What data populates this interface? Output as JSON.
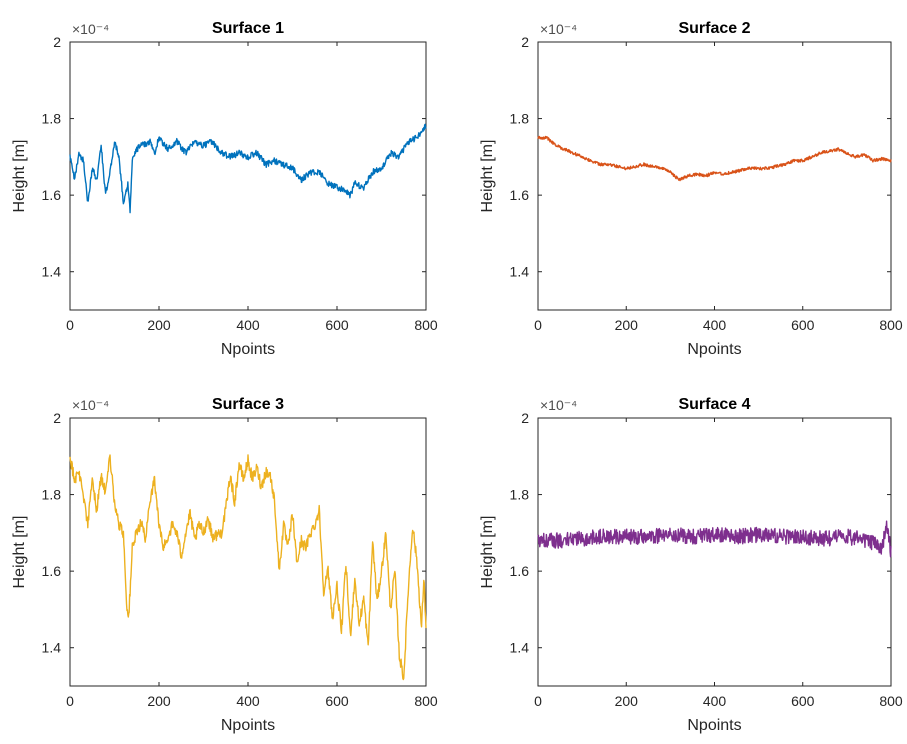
{
  "chart_data": [
    {
      "type": "line",
      "title": "Surface 1",
      "xlabel": "Npoints",
      "ylabel": "Height [m]",
      "exponent_label": "×10⁻⁴",
      "xlim": [
        0,
        800
      ],
      "ylim": [
        1.3,
        2.0
      ],
      "xticks": [
        "0",
        "200",
        "400",
        "600",
        "800"
      ],
      "yticks": [
        "1.4",
        "1.6",
        "1.8",
        "2"
      ],
      "color": "#0072BD",
      "noise_amp": 0.008,
      "series": [
        {
          "x": [
            0,
            10,
            20,
            30,
            40,
            50,
            60,
            70,
            80,
            90,
            100,
            110,
            120,
            130,
            135,
            140,
            150,
            160,
            180,
            190,
            200,
            220,
            240,
            260,
            280,
            300,
            320,
            340,
            360,
            380,
            400,
            420,
            440,
            460,
            480,
            500,
            520,
            540,
            560,
            580,
            600,
            620,
            630,
            640,
            660,
            680,
            700,
            720,
            740,
            760,
            780,
            800
          ],
          "values": [
            1.7,
            1.64,
            1.71,
            1.69,
            1.58,
            1.67,
            1.64,
            1.73,
            1.6,
            1.66,
            1.74,
            1.7,
            1.58,
            1.63,
            1.56,
            1.69,
            1.72,
            1.73,
            1.74,
            1.71,
            1.75,
            1.72,
            1.74,
            1.71,
            1.74,
            1.73,
            1.74,
            1.71,
            1.7,
            1.71,
            1.7,
            1.71,
            1.68,
            1.69,
            1.68,
            1.67,
            1.64,
            1.66,
            1.66,
            1.63,
            1.62,
            1.61,
            1.6,
            1.63,
            1.62,
            1.66,
            1.67,
            1.71,
            1.7,
            1.74,
            1.75,
            1.78
          ]
        }
      ]
    },
    {
      "type": "line",
      "title": "Surface 2",
      "xlabel": "Npoints",
      "ylabel": "Height [m]",
      "exponent_label": "×10⁻⁴",
      "xlim": [
        0,
        800
      ],
      "ylim": [
        1.3,
        2.0
      ],
      "xticks": [
        "0",
        "200",
        "400",
        "600",
        "800"
      ],
      "yticks": [
        "1.4",
        "1.6",
        "1.8",
        "2"
      ],
      "color": "#D95319",
      "noise_amp": 0.004,
      "series": [
        {
          "x": [
            0,
            20,
            40,
            60,
            80,
            100,
            120,
            140,
            160,
            180,
            200,
            220,
            240,
            260,
            280,
            300,
            320,
            340,
            360,
            380,
            400,
            420,
            440,
            460,
            480,
            500,
            520,
            540,
            560,
            580,
            600,
            620,
            640,
            660,
            680,
            700,
            720,
            740,
            760,
            780,
            800
          ],
          "values": [
            1.75,
            1.75,
            1.73,
            1.72,
            1.71,
            1.7,
            1.69,
            1.68,
            1.68,
            1.675,
            1.67,
            1.675,
            1.68,
            1.675,
            1.67,
            1.66,
            1.64,
            1.65,
            1.655,
            1.65,
            1.66,
            1.655,
            1.66,
            1.665,
            1.67,
            1.67,
            1.67,
            1.675,
            1.68,
            1.69,
            1.69,
            1.7,
            1.71,
            1.715,
            1.72,
            1.71,
            1.7,
            1.705,
            1.69,
            1.695,
            1.69
          ]
        }
      ]
    },
    {
      "type": "line",
      "title": "Surface 3",
      "xlabel": "Npoints",
      "ylabel": "Height [m]",
      "exponent_label": "×10⁻⁴",
      "xlim": [
        0,
        800
      ],
      "ylim": [
        1.3,
        2.0
      ],
      "xticks": [
        "0",
        "200",
        "400",
        "600",
        "800"
      ],
      "yticks": [
        "1.4",
        "1.6",
        "1.8",
        "2"
      ],
      "color": "#EDB120",
      "noise_amp": 0.015,
      "series": [
        {
          "x": [
            0,
            10,
            20,
            30,
            40,
            50,
            60,
            70,
            80,
            90,
            100,
            110,
            120,
            128,
            132,
            140,
            150,
            160,
            170,
            180,
            190,
            200,
            210,
            220,
            230,
            240,
            250,
            260,
            270,
            280,
            290,
            300,
            310,
            320,
            340,
            350,
            360,
            370,
            380,
            390,
            400,
            410,
            420,
            430,
            440,
            450,
            460,
            470,
            480,
            490,
            500,
            510,
            520,
            530,
            540,
            550,
            560,
            570,
            580,
            590,
            600,
            610,
            620,
            630,
            640,
            650,
            660,
            670,
            680,
            690,
            700,
            710,
            720,
            730,
            740,
            750,
            760,
            770,
            780,
            790,
            795,
            800
          ],
          "values": [
            1.9,
            1.84,
            1.86,
            1.8,
            1.72,
            1.84,
            1.76,
            1.85,
            1.8,
            1.9,
            1.78,
            1.72,
            1.7,
            1.5,
            1.48,
            1.66,
            1.7,
            1.73,
            1.68,
            1.79,
            1.84,
            1.72,
            1.66,
            1.69,
            1.72,
            1.7,
            1.64,
            1.7,
            1.75,
            1.68,
            1.72,
            1.7,
            1.74,
            1.69,
            1.7,
            1.76,
            1.85,
            1.78,
            1.88,
            1.84,
            1.89,
            1.84,
            1.87,
            1.82,
            1.86,
            1.85,
            1.78,
            1.6,
            1.72,
            1.66,
            1.75,
            1.62,
            1.68,
            1.66,
            1.7,
            1.72,
            1.76,
            1.55,
            1.6,
            1.48,
            1.56,
            1.44,
            1.62,
            1.43,
            1.58,
            1.46,
            1.53,
            1.4,
            1.68,
            1.52,
            1.6,
            1.7,
            1.5,
            1.6,
            1.38,
            1.32,
            1.55,
            1.72,
            1.62,
            1.45,
            1.58,
            1.46
          ]
        }
      ]
    },
    {
      "type": "line",
      "title": "Surface 4",
      "xlabel": "Npoints",
      "ylabel": "Height [m]",
      "exponent_label": "×10⁻⁴",
      "xlim": [
        0,
        800
      ],
      "ylim": [
        1.3,
        2.0
      ],
      "xticks": [
        "0",
        "200",
        "400",
        "600",
        "800"
      ],
      "yticks": [
        "1.4",
        "1.6",
        "1.8",
        "2"
      ],
      "color": "#7E2F8E",
      "noise_amp": 0.02,
      "series": [
        {
          "x": [
            0,
            50,
            100,
            150,
            200,
            250,
            300,
            350,
            400,
            450,
            500,
            550,
            600,
            650,
            700,
            750,
            780,
            790,
            800
          ],
          "values": [
            1.68,
            1.68,
            1.685,
            1.69,
            1.69,
            1.69,
            1.695,
            1.69,
            1.695,
            1.69,
            1.695,
            1.69,
            1.69,
            1.685,
            1.69,
            1.68,
            1.66,
            1.72,
            1.65
          ]
        }
      ]
    }
  ]
}
